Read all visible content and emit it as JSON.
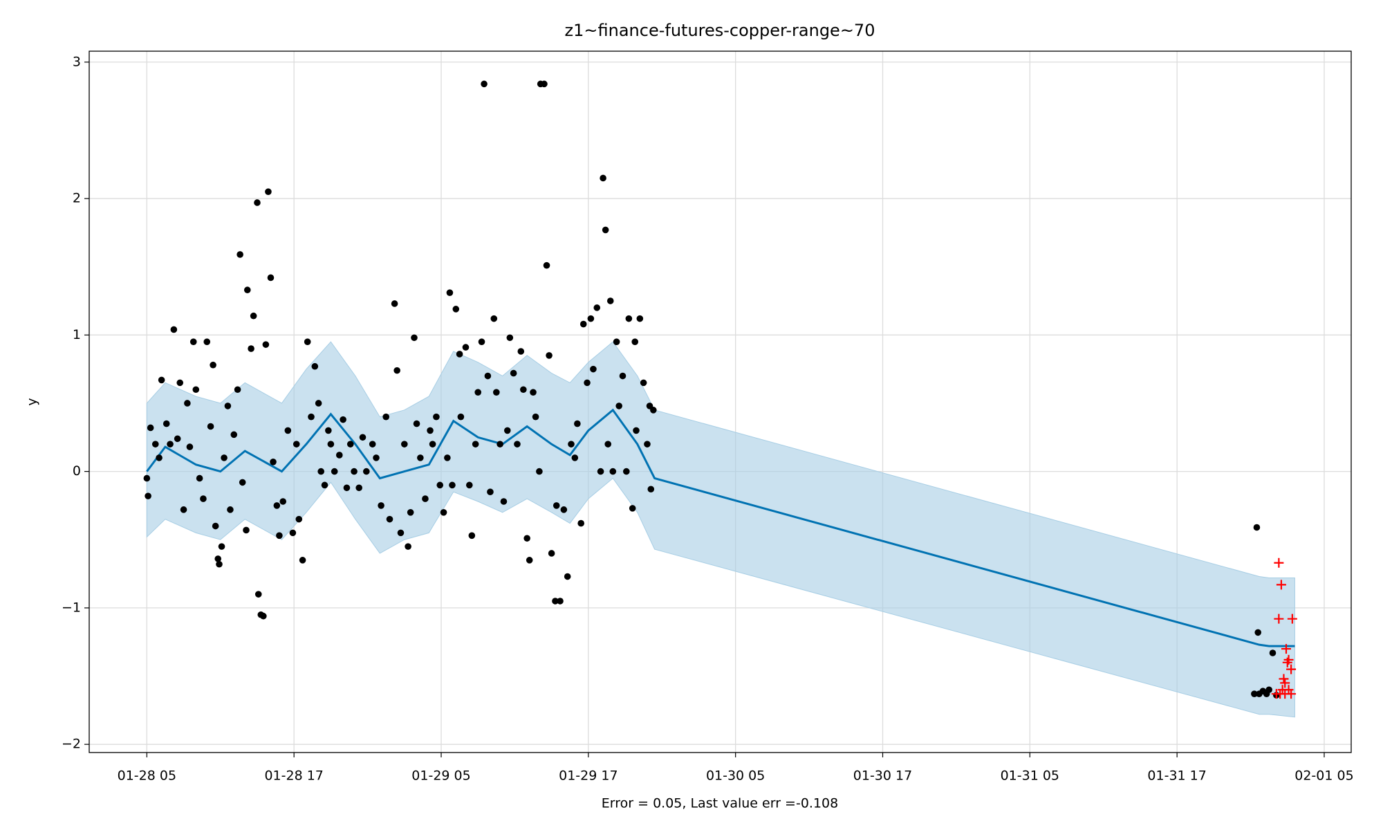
{
  "chart_data": {
    "type": "line",
    "title": "z1~finance-futures-copper-range~70",
    "y_label": "y",
    "x_label": "Error = 0.05, Last value err =-0.108",
    "grid": true,
    "xlim": [
      0.3,
      103.2
    ],
    "ylim": [
      -2.06,
      3.08
    ],
    "xticks": [
      {
        "value": 5,
        "label": "01-28 05"
      },
      {
        "value": 17,
        "label": "01-28 17"
      },
      {
        "value": 29,
        "label": "01-29 05"
      },
      {
        "value": 41,
        "label": "01-29 17"
      },
      {
        "value": 53,
        "label": "01-30 05"
      },
      {
        "value": 65,
        "label": "01-30 17"
      },
      {
        "value": 77,
        "label": "01-31 05"
      },
      {
        "value": 89,
        "label": "01-31 17"
      },
      {
        "value": 101,
        "label": "02-01 05"
      }
    ],
    "yticks": [
      {
        "value": -2,
        "label": "−2"
      },
      {
        "value": -1,
        "label": "−1"
      },
      0,
      1,
      2,
      3
    ],
    "series": [
      {
        "type": "forecast",
        "color": "#0072B2",
        "band_color": "#a6cde4",
        "x": [
          5,
          6.5,
          9,
          11,
          13,
          16,
          18,
          20,
          22,
          24,
          26,
          28,
          30,
          32,
          34,
          36,
          38,
          39.5,
          41,
          43,
          45,
          46.4,
          95.7,
          96.5,
          98.6
        ],
        "values": [
          0.0,
          0.18,
          0.05,
          0.0,
          0.15,
          0.0,
          0.2,
          0.42,
          0.2,
          -0.05,
          0.0,
          0.05,
          0.37,
          0.25,
          0.2,
          0.33,
          0.2,
          0.12,
          0.3,
          0.45,
          0.2,
          -0.05,
          -1.27,
          -1.28,
          -1.28
        ],
        "upper": [
          0.5,
          0.65,
          0.55,
          0.5,
          0.65,
          0.5,
          0.75,
          0.95,
          0.7,
          0.4,
          0.45,
          0.55,
          0.88,
          0.8,
          0.7,
          0.85,
          0.72,
          0.65,
          0.8,
          0.95,
          0.7,
          0.45,
          -0.77,
          -0.78,
          -0.78
        ],
        "lower": [
          -0.48,
          -0.35,
          -0.45,
          -0.5,
          -0.35,
          -0.5,
          -0.3,
          -0.08,
          -0.35,
          -0.6,
          -0.5,
          -0.45,
          -0.15,
          -0.22,
          -0.3,
          -0.2,
          -0.3,
          -0.38,
          -0.2,
          -0.05,
          -0.3,
          -0.57,
          -1.78,
          -1.78,
          -1.8
        ]
      },
      {
        "type": "scatter",
        "marker": "o",
        "color": "#000000",
        "x": [
          5.0,
          5.1,
          5.3,
          5.7,
          6.0,
          6.2,
          6.6,
          6.9,
          7.2,
          7.5,
          7.7,
          8.0,
          8.3,
          8.5,
          8.8,
          9.0,
          9.3,
          9.6,
          9.9,
          10.2,
          10.4,
          10.6,
          10.8,
          10.9,
          11.1,
          11.3,
          11.6,
          11.8,
          12.1,
          12.4,
          12.6,
          12.8,
          13.1,
          13.2,
          13.5,
          13.7,
          14.0,
          14.1,
          14.3,
          14.5,
          14.7,
          14.9,
          15.1,
          15.3,
          15.6,
          15.8,
          16.1,
          16.5,
          16.9,
          17.2,
          17.4,
          17.7,
          18.1,
          18.4,
          18.7,
          19.0,
          19.2,
          19.5,
          19.8,
          20.0,
          20.3,
          20.7,
          21.0,
          21.3,
          21.6,
          21.9,
          22.3,
          22.6,
          22.9,
          23.4,
          23.7,
          24.1,
          24.5,
          24.8,
          25.2,
          25.4,
          25.7,
          26.0,
          26.3,
          26.5,
          26.8,
          27.0,
          27.3,
          27.7,
          28.1,
          28.3,
          28.6,
          28.9,
          29.2,
          29.5,
          29.7,
          29.9,
          30.2,
          30.5,
          30.6,
          31.0,
          31.3,
          31.5,
          31.8,
          32.0,
          32.3,
          32.5,
          32.8,
          33.0,
          33.3,
          33.5,
          33.8,
          34.1,
          34.4,
          34.6,
          34.9,
          35.2,
          35.5,
          35.7,
          36.0,
          36.2,
          36.5,
          36.7,
          37.0,
          37.1,
          37.4,
          37.6,
          37.8,
          38.0,
          38.3,
          38.4,
          38.7,
          39.0,
          39.3,
          39.6,
          39.9,
          40.1,
          40.4,
          40.6,
          40.9,
          41.2,
          41.4,
          41.7,
          42.0,
          42.2,
          42.4,
          42.6,
          42.8,
          43.0,
          43.3,
          43.5,
          43.8,
          44.1,
          44.3,
          44.6,
          44.8,
          44.9,
          45.2,
          45.5,
          45.8,
          46.0,
          46.1,
          46.3,
          95.5,
          95.6,
          95.3,
          95.7,
          96.0,
          96.3,
          96.5,
          96.8,
          97.1
        ],
        "values": [
          -0.05,
          -0.18,
          0.32,
          0.2,
          0.1,
          0.67,
          0.35,
          0.2,
          1.04,
          0.24,
          0.65,
          -0.28,
          0.5,
          0.18,
          0.95,
          0.6,
          -0.05,
          -0.2,
          0.95,
          0.33,
          0.78,
          -0.4,
          -0.64,
          -0.68,
          -0.55,
          0.1,
          0.48,
          -0.28,
          0.27,
          0.6,
          1.59,
          -0.08,
          -0.43,
          1.33,
          0.9,
          1.14,
          1.97,
          -0.9,
          -1.05,
          -1.06,
          0.93,
          2.05,
          1.42,
          0.07,
          -0.25,
          -0.47,
          -0.22,
          0.3,
          -0.45,
          0.2,
          -0.35,
          -0.65,
          0.95,
          0.4,
          0.77,
          0.5,
          0.0,
          -0.1,
          0.3,
          0.2,
          0.0,
          0.12,
          0.38,
          -0.12,
          0.2,
          0.0,
          -0.12,
          0.25,
          0.0,
          0.2,
          0.1,
          -0.25,
          0.4,
          -0.35,
          1.23,
          0.74,
          -0.45,
          0.2,
          -0.55,
          -0.3,
          0.98,
          0.35,
          0.1,
          -0.2,
          0.3,
          0.2,
          0.4,
          -0.1,
          -0.3,
          0.1,
          1.31,
          -0.1,
          1.19,
          0.86,
          0.4,
          0.91,
          -0.1,
          -0.47,
          0.2,
          0.58,
          0.95,
          2.84,
          0.7,
          -0.15,
          1.12,
          0.58,
          0.2,
          -0.22,
          0.3,
          0.98,
          0.72,
          0.2,
          0.88,
          0.6,
          -0.49,
          -0.65,
          0.58,
          0.4,
          0.0,
          2.84,
          2.84,
          1.51,
          0.85,
          -0.6,
          -0.95,
          -0.25,
          -0.95,
          -0.28,
          -0.77,
          0.2,
          0.1,
          0.35,
          -0.38,
          1.08,
          0.65,
          1.12,
          0.75,
          1.2,
          0.0,
          2.15,
          1.77,
          0.2,
          1.25,
          0.0,
          0.95,
          0.48,
          0.7,
          0.0,
          1.12,
          -0.27,
          0.95,
          0.3,
          1.12,
          0.65,
          0.2,
          0.48,
          -0.13,
          0.45,
          -0.41,
          -1.18,
          -1.63,
          -1.63,
          -1.61,
          -1.63,
          -1.6,
          -1.33,
          -1.64
        ]
      },
      {
        "type": "scatter",
        "marker": "+",
        "color": "#ff0000",
        "x": [
          97.3,
          97.5,
          97.3,
          98.4,
          97.9,
          98.1,
          98.0,
          98.3,
          97.7,
          97.8,
          98.1,
          97.1,
          97.4,
          97.8,
          98.3,
          97.6
        ],
        "values": [
          -0.67,
          -0.83,
          -1.08,
          -1.08,
          -1.3,
          -1.38,
          -1.4,
          -1.45,
          -1.52,
          -1.55,
          -1.6,
          -1.63,
          -1.63,
          -1.63,
          -1.63,
          -1.6
        ]
      }
    ]
  }
}
